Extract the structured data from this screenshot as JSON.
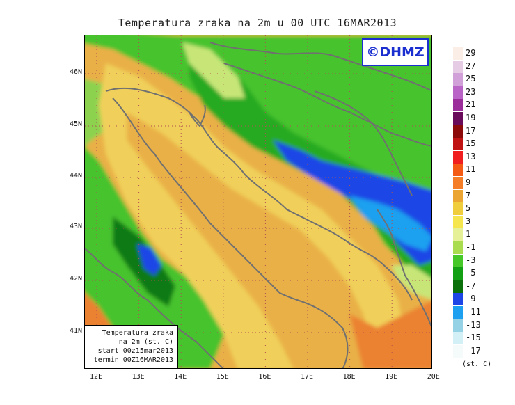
{
  "title": "Temperatura zraka na 2m u 00 UTC 16MAR2013",
  "badge": "©DHMZ",
  "info": {
    "line1": "Temperatura zraka",
    "line2": "na 2m (st. C)",
    "line3": "start 00z15mar2013",
    "line4": "termin 00Z16MAR2013"
  },
  "lat_labels": [
    "46N",
    "45N",
    "44N",
    "43N",
    "42N",
    "41N"
  ],
  "lon_labels": [
    "12E",
    "13E",
    "14E",
    "15E",
    "16E",
    "17E",
    "18E",
    "19E",
    "20E"
  ],
  "legend": {
    "labels": [
      "29",
      "27",
      "25",
      "23",
      "21",
      "19",
      "17",
      "15",
      "13",
      "11",
      "9",
      "7",
      "5",
      "3",
      "1",
      "-1",
      "-3",
      "-5",
      "-7",
      "-9",
      "-11",
      "-13",
      "-15",
      "-17"
    ],
    "colors": [
      "#fbeee6",
      "#e6cbe4",
      "#d2a0d8",
      "#b964c6",
      "#9b2e9b",
      "#6a0a5a",
      "#8c0a0a",
      "#c01414",
      "#f01e1e",
      "#f55a14",
      "#f57d28",
      "#eba532",
      "#f0cd3c",
      "#f5e650",
      "#e6f096",
      "#aadc50",
      "#46c828",
      "#14a014",
      "#0a700a",
      "#1e46e6",
      "#1ea0f0",
      "#96d2e6",
      "#d2f0f5",
      "#f5fafa"
    ],
    "units": "(st. C)"
  },
  "map_colors": {
    "deep_warm": "#eb8232",
    "warm": "#e9b046",
    "mild": "#f0d05a",
    "light": "#f3e874",
    "pale_green": "#c8e678",
    "light_green": "#8cd250",
    "green": "#46c32d",
    "mid_green": "#28aa23",
    "dark_green": "#0f7a12",
    "cold_blue": "#1e46e6",
    "light_blue": "#1ea0f0",
    "pale_blue": "#a0d8ec",
    "coast": "#707070",
    "grid": "#b05050"
  }
}
